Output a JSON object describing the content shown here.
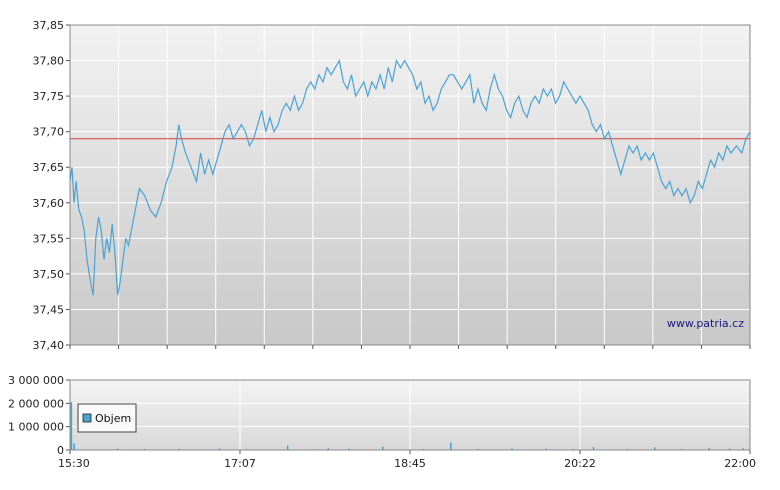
{
  "watermark": "www.patria.cz",
  "colors": {
    "price_line": "#4aa3d4",
    "reference_line": "#d63a3a",
    "volume_bar": "#4aa3d4",
    "grid": "#ffffff",
    "plot_bg_top": "#f2f2f2",
    "plot_bg_bottom": "#c8c8c8"
  },
  "chart_data": [
    {
      "type": "line",
      "title": "",
      "xlabel": "",
      "ylabel": "",
      "x_ticks": [
        {
          "label": "",
          "t": 0
        },
        {
          "label": "",
          "t": 0.0714
        },
        {
          "label": "",
          "t": 0.1429
        },
        {
          "label": "",
          "t": 0.2143
        },
        {
          "label": "",
          "t": 0.2857
        },
        {
          "label": "",
          "t": 0.3571
        },
        {
          "label": "",
          "t": 0.4286
        },
        {
          "label": "",
          "t": 0.5
        },
        {
          "label": "",
          "t": 0.5714
        },
        {
          "label": "",
          "t": 0.6429
        },
        {
          "label": "",
          "t": 0.7143
        },
        {
          "label": "",
          "t": 0.7857
        },
        {
          "label": "",
          "t": 0.8571
        },
        {
          "label": "",
          "t": 0.9286
        },
        {
          "label": "",
          "t": 1
        }
      ],
      "y_ticks": [
        "37,85",
        "37,80",
        "37,75",
        "37,70",
        "37,65",
        "37,60",
        "37,55",
        "37,50",
        "37,45",
        "37,40"
      ],
      "ylim": [
        37.4,
        37.85
      ],
      "reference_value": 37.69,
      "series": [
        {
          "points": [
            [
              0.0,
              37.63
            ],
            [
              0.003,
              37.65
            ],
            [
              0.006,
              37.6
            ],
            [
              0.009,
              37.63
            ],
            [
              0.013,
              37.59
            ],
            [
              0.017,
              37.58
            ],
            [
              0.021,
              37.56
            ],
            [
              0.025,
              37.52
            ],
            [
              0.03,
              37.49
            ],
            [
              0.034,
              37.47
            ],
            [
              0.038,
              37.55
            ],
            [
              0.042,
              37.58
            ],
            [
              0.046,
              37.56
            ],
            [
              0.05,
              37.52
            ],
            [
              0.054,
              37.55
            ],
            [
              0.058,
              37.53
            ],
            [
              0.062,
              37.57
            ],
            [
              0.066,
              37.53
            ],
            [
              0.07,
              37.47
            ],
            [
              0.074,
              37.49
            ],
            [
              0.078,
              37.52
            ],
            [
              0.082,
              37.55
            ],
            [
              0.086,
              37.54
            ],
            [
              0.09,
              37.56
            ],
            [
              0.096,
              37.59
            ],
            [
              0.102,
              37.62
            ],
            [
              0.11,
              37.61
            ],
            [
              0.118,
              37.59
            ],
            [
              0.126,
              37.58
            ],
            [
              0.134,
              37.6
            ],
            [
              0.142,
              37.63
            ],
            [
              0.15,
              37.65
            ],
            [
              0.156,
              37.68
            ],
            [
              0.16,
              37.71
            ],
            [
              0.164,
              37.69
            ],
            [
              0.17,
              37.67
            ],
            [
              0.178,
              37.65
            ],
            [
              0.186,
              37.63
            ],
            [
              0.192,
              37.67
            ],
            [
              0.198,
              37.64
            ],
            [
              0.204,
              37.66
            ],
            [
              0.21,
              37.64
            ],
            [
              0.216,
              37.66
            ],
            [
              0.222,
              37.68
            ],
            [
              0.228,
              37.7
            ],
            [
              0.234,
              37.71
            ],
            [
              0.24,
              37.69
            ],
            [
              0.246,
              37.7
            ],
            [
              0.252,
              37.71
            ],
            [
              0.258,
              37.7
            ],
            [
              0.264,
              37.68
            ],
            [
              0.27,
              37.69
            ],
            [
              0.276,
              37.71
            ],
            [
              0.282,
              37.73
            ],
            [
              0.288,
              37.7
            ],
            [
              0.294,
              37.72
            ],
            [
              0.3,
              37.7
            ],
            [
              0.306,
              37.71
            ],
            [
              0.312,
              37.73
            ],
            [
              0.318,
              37.74
            ],
            [
              0.324,
              37.73
            ],
            [
              0.33,
              37.75
            ],
            [
              0.336,
              37.73
            ],
            [
              0.342,
              37.74
            ],
            [
              0.348,
              37.76
            ],
            [
              0.354,
              37.77
            ],
            [
              0.36,
              37.76
            ],
            [
              0.366,
              37.78
            ],
            [
              0.372,
              37.77
            ],
            [
              0.378,
              37.79
            ],
            [
              0.384,
              37.78
            ],
            [
              0.39,
              37.79
            ],
            [
              0.396,
              37.8
            ],
            [
              0.402,
              37.77
            ],
            [
              0.408,
              37.76
            ],
            [
              0.414,
              37.78
            ],
            [
              0.42,
              37.75
            ],
            [
              0.426,
              37.76
            ],
            [
              0.432,
              37.77
            ],
            [
              0.438,
              37.75
            ],
            [
              0.444,
              37.77
            ],
            [
              0.45,
              37.76
            ],
            [
              0.456,
              37.78
            ],
            [
              0.462,
              37.76
            ],
            [
              0.468,
              37.79
            ],
            [
              0.474,
              37.77
            ],
            [
              0.48,
              37.8
            ],
            [
              0.486,
              37.79
            ],
            [
              0.492,
              37.8
            ],
            [
              0.498,
              37.79
            ],
            [
              0.504,
              37.78
            ],
            [
              0.51,
              37.76
            ],
            [
              0.516,
              37.77
            ],
            [
              0.522,
              37.74
            ],
            [
              0.528,
              37.75
            ],
            [
              0.534,
              37.73
            ],
            [
              0.54,
              37.74
            ],
            [
              0.546,
              37.76
            ],
            [
              0.552,
              37.77
            ],
            [
              0.558,
              37.78
            ],
            [
              0.564,
              37.78
            ],
            [
              0.57,
              37.77
            ],
            [
              0.576,
              37.76
            ],
            [
              0.582,
              37.77
            ],
            [
              0.588,
              37.78
            ],
            [
              0.594,
              37.74
            ],
            [
              0.6,
              37.76
            ],
            [
              0.606,
              37.74
            ],
            [
              0.612,
              37.73
            ],
            [
              0.618,
              37.76
            ],
            [
              0.624,
              37.78
            ],
            [
              0.63,
              37.76
            ],
            [
              0.636,
              37.75
            ],
            [
              0.642,
              37.73
            ],
            [
              0.648,
              37.72
            ],
            [
              0.654,
              37.74
            ],
            [
              0.66,
              37.75
            ],
            [
              0.666,
              37.73
            ],
            [
              0.672,
              37.72
            ],
            [
              0.678,
              37.74
            ],
            [
              0.684,
              37.75
            ],
            [
              0.69,
              37.74
            ],
            [
              0.696,
              37.76
            ],
            [
              0.702,
              37.75
            ],
            [
              0.708,
              37.76
            ],
            [
              0.714,
              37.74
            ],
            [
              0.72,
              37.75
            ],
            [
              0.726,
              37.77
            ],
            [
              0.732,
              37.76
            ],
            [
              0.738,
              37.75
            ],
            [
              0.744,
              37.74
            ],
            [
              0.75,
              37.75
            ],
            [
              0.756,
              37.74
            ],
            [
              0.762,
              37.73
            ],
            [
              0.768,
              37.71
            ],
            [
              0.774,
              37.7
            ],
            [
              0.78,
              37.71
            ],
            [
              0.786,
              37.69
            ],
            [
              0.792,
              37.7
            ],
            [
              0.798,
              37.68
            ],
            [
              0.804,
              37.66
            ],
            [
              0.81,
              37.64
            ],
            [
              0.816,
              37.66
            ],
            [
              0.822,
              37.68
            ],
            [
              0.828,
              37.67
            ],
            [
              0.834,
              37.68
            ],
            [
              0.84,
              37.66
            ],
            [
              0.846,
              37.67
            ],
            [
              0.852,
              37.66
            ],
            [
              0.858,
              37.67
            ],
            [
              0.864,
              37.65
            ],
            [
              0.87,
              37.63
            ],
            [
              0.876,
              37.62
            ],
            [
              0.882,
              37.63
            ],
            [
              0.888,
              37.61
            ],
            [
              0.894,
              37.62
            ],
            [
              0.9,
              37.61
            ],
            [
              0.906,
              37.62
            ],
            [
              0.912,
              37.6
            ],
            [
              0.918,
              37.61
            ],
            [
              0.924,
              37.63
            ],
            [
              0.93,
              37.62
            ],
            [
              0.936,
              37.64
            ],
            [
              0.942,
              37.66
            ],
            [
              0.948,
              37.65
            ],
            [
              0.954,
              37.67
            ],
            [
              0.96,
              37.66
            ],
            [
              0.966,
              37.68
            ],
            [
              0.972,
              37.67
            ],
            [
              0.98,
              37.68
            ],
            [
              0.988,
              37.67
            ],
            [
              0.994,
              37.69
            ],
            [
              1.0,
              37.7
            ]
          ]
        }
      ]
    },
    {
      "type": "bar",
      "title": "",
      "xlabel": "",
      "ylabel": "",
      "x_ticks": [
        {
          "label": "15:30",
          "t": 0
        },
        {
          "label": "17:07",
          "t": 0.25
        },
        {
          "label": "18:45",
          "t": 0.5
        },
        {
          "label": "20:22",
          "t": 0.75
        },
        {
          "label": "22:00",
          "t": 1
        }
      ],
      "y_ticks": [
        "3 000 000",
        "2 000 000",
        "1 000 000",
        "0"
      ],
      "ylim": [
        0,
        3000000
      ],
      "legend": {
        "label": "Objem",
        "position": "top-left"
      },
      "bars": [
        [
          0.002,
          2050000
        ],
        [
          0.006,
          280000
        ],
        [
          0.07,
          60000
        ],
        [
          0.11,
          40000
        ],
        [
          0.16,
          50000
        ],
        [
          0.22,
          70000
        ],
        [
          0.26,
          30000
        ],
        [
          0.32,
          190000
        ],
        [
          0.36,
          40000
        ],
        [
          0.38,
          80000
        ],
        [
          0.41,
          60000
        ],
        [
          0.46,
          140000
        ],
        [
          0.52,
          40000
        ],
        [
          0.56,
          320000
        ],
        [
          0.6,
          50000
        ],
        [
          0.65,
          70000
        ],
        [
          0.7,
          60000
        ],
        [
          0.74,
          45000
        ],
        [
          0.77,
          130000
        ],
        [
          0.82,
          50000
        ],
        [
          0.86,
          110000
        ],
        [
          0.9,
          40000
        ],
        [
          0.94,
          90000
        ],
        [
          0.97,
          60000
        ],
        [
          0.99,
          70000
        ]
      ]
    }
  ]
}
